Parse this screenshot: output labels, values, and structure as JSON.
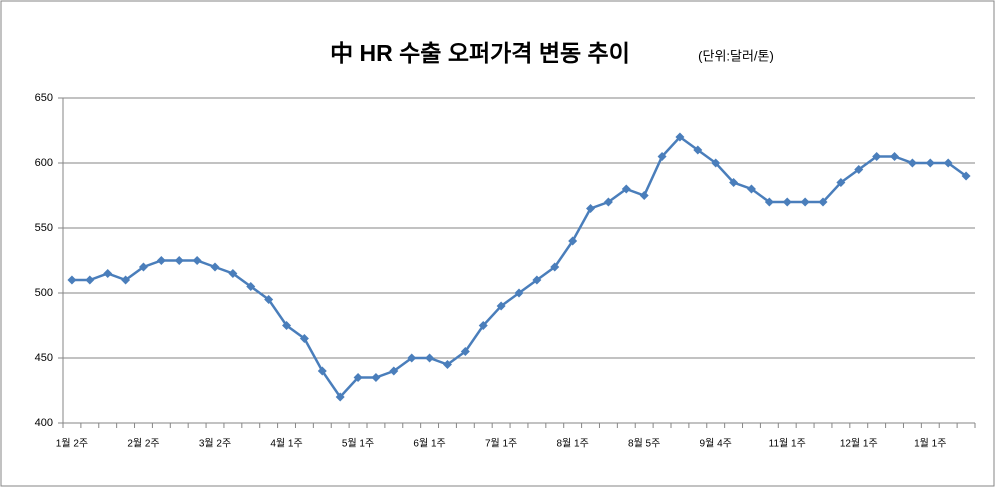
{
  "chart_data": {
    "type": "line",
    "title": "中 HR 수출 오퍼가격 변동 추이",
    "subtitle": "(단위:달러/톤)",
    "categories": [
      "1월 2주",
      null,
      null,
      null,
      "2월 2주",
      null,
      null,
      null,
      "3월 2주",
      null,
      null,
      null,
      "4월 1주",
      null,
      null,
      null,
      "5월 1주",
      null,
      null,
      null,
      "6월 1주",
      null,
      null,
      null,
      "7월 1주",
      null,
      null,
      null,
      "8월 1주",
      null,
      null,
      null,
      "8월 5주",
      null,
      null,
      null,
      "9월 4주",
      null,
      null,
      null,
      "11월 1주",
      null,
      null,
      null,
      "12월 1주",
      null,
      null,
      null,
      "1월 1주",
      null,
      null
    ],
    "series": [
      {
        "color": "#4a7ebb",
        "values": [
          510,
          510,
          515,
          510,
          520,
          525,
          525,
          525,
          520,
          515,
          505,
          495,
          475,
          465,
          440,
          420,
          435,
          435,
          440,
          450,
          450,
          445,
          455,
          475,
          490,
          500,
          510,
          520,
          540,
          565,
          570,
          580,
          575,
          605,
          620,
          610,
          600,
          585,
          580,
          570,
          570,
          570,
          570,
          585,
          595,
          605,
          605,
          600,
          600,
          600,
          590
        ]
      }
    ],
    "ylim": [
      400,
      650
    ],
    "yticks": [
      400,
      450,
      500,
      550,
      600,
      650
    ],
    "grid": true
  }
}
